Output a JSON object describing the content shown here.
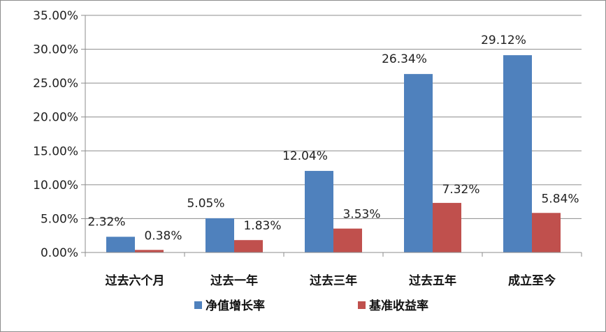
{
  "chart_data": {
    "type": "bar",
    "title": "",
    "xlabel": "",
    "ylabel": "",
    "categories": [
      "过去六个月",
      "过去一年",
      "过去三年",
      "过去五年",
      "成立至今"
    ],
    "series": [
      {
        "name": "净值增长率",
        "color": "#4f81bd",
        "values": [
          2.32,
          5.05,
          12.04,
          26.34,
          29.12
        ],
        "labels": [
          "2.32%",
          "5.05%",
          "12.04%",
          "26.34%",
          "29.12%"
        ]
      },
      {
        "name": "基准收益率",
        "color": "#c0504d",
        "values": [
          0.38,
          1.83,
          3.53,
          7.32,
          5.84
        ],
        "labels": [
          "0.38%",
          "1.83%",
          "3.53%",
          "7.32%",
          "5.84%"
        ]
      }
    ],
    "ylim": [
      0,
      35
    ],
    "yticks": [
      0,
      5,
      10,
      15,
      20,
      25,
      30,
      35
    ],
    "ytick_labels": [
      "0.00%",
      "5.00%",
      "10.00%",
      "15.00%",
      "20.00%",
      "25.00%",
      "30.00%",
      "35.00%"
    ],
    "grid": true,
    "legend": "bottom-center"
  }
}
